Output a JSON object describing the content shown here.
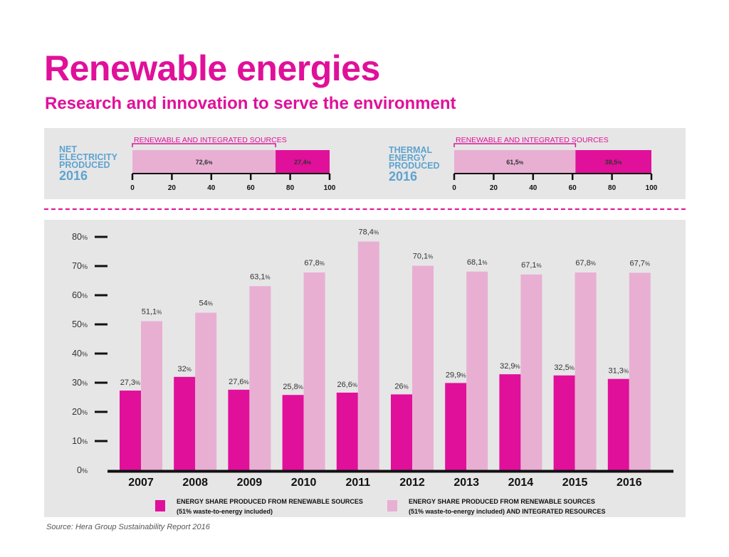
{
  "header": {
    "title": "Renewable energies",
    "subtitle": "Research and innovation to serve the environment"
  },
  "electricity": {
    "label_lines": [
      "NET",
      "ELECTRICITY",
      "PRODUCED"
    ],
    "year": "2016",
    "bracket_label": "RENEWABLE AND INTEGRATED SOURCES"
  },
  "thermal": {
    "label_lines": [
      "THERMAL",
      "ENERGY",
      "PRODUCED"
    ],
    "year": "2016",
    "bracket_label": "RENEWABLE AND INTEGRATED SOURCES"
  },
  "source": "Source: Hera Group Sustainability Report 2016",
  "colors": {
    "magenta": "#e0109a",
    "pink": "#e8afd3",
    "label_blue": "#5ea3d0",
    "panel": "#e6e6e6"
  },
  "chart_data": [
    {
      "type": "bar",
      "orientation": "horizontal-stacked",
      "title": "",
      "values": [
        72.6,
        27.4
      ],
      "value_labels": [
        "72,6",
        "27,4"
      ],
      "percent_sign": "%",
      "ticks": [
        "0",
        "20",
        "40",
        "60",
        "80",
        "100"
      ],
      "xlim": [
        0,
        100
      ]
    },
    {
      "type": "bar",
      "orientation": "horizontal-stacked",
      "title": "",
      "values": [
        61.5,
        38.5
      ],
      "value_labels": [
        "61,5",
        "38,5"
      ],
      "percent_sign": "%",
      "ticks": [
        "0",
        "20",
        "40",
        "60",
        "80",
        "100"
      ],
      "xlim": [
        0,
        100
      ]
    },
    {
      "type": "bar",
      "categories": [
        "2007",
        "2008",
        "2009",
        "2010",
        "2011",
        "2012",
        "2013",
        "2014",
        "2015",
        "2016"
      ],
      "series": [
        {
          "name": "ENERGY SHARE PRODUCED FROM RENEWABLE SOURCES (51% waste-to-energy included)",
          "legend_lines": [
            "ENERGY SHARE PRODUCED FROM RENEWABLE SOURCES",
            "(51% waste-to-energy included)"
          ],
          "values": [
            27.3,
            32,
            27.6,
            25.8,
            26.6,
            26,
            29.9,
            32.9,
            32.5,
            31.3
          ],
          "labels": [
            "27,3",
            "32",
            "27,6",
            "25,8",
            "26,6",
            "26",
            "29,9",
            "32,9",
            "32,5",
            "31,3"
          ]
        },
        {
          "name": "ENERGY SHARE PRODUCED FROM RENEWABLE SOURCES (51% waste-to-energy included) AND INTEGRATED RESOURCES",
          "legend_lines": [
            "ENERGY SHARE PRODUCED FROM RENEWABLE SOURCES",
            "(51% waste-to-energy included) AND INTEGRATED RESOURCES"
          ],
          "values": [
            51.1,
            54,
            63.1,
            67.8,
            78.4,
            70.1,
            68.1,
            67.1,
            67.8,
            67.7
          ],
          "labels": [
            "51,1",
            "54",
            "63,1",
            "67,8",
            "78,4",
            "70,1",
            "68,1",
            "67,1",
            "67,8",
            "67,7"
          ]
        }
      ],
      "y_ticks": [
        "0",
        "10",
        "20",
        "30",
        "40",
        "50",
        "60",
        "70",
        "80"
      ],
      "percent_sign": "%",
      "ylim": [
        0,
        80
      ],
      "legend": "bottom"
    }
  ]
}
